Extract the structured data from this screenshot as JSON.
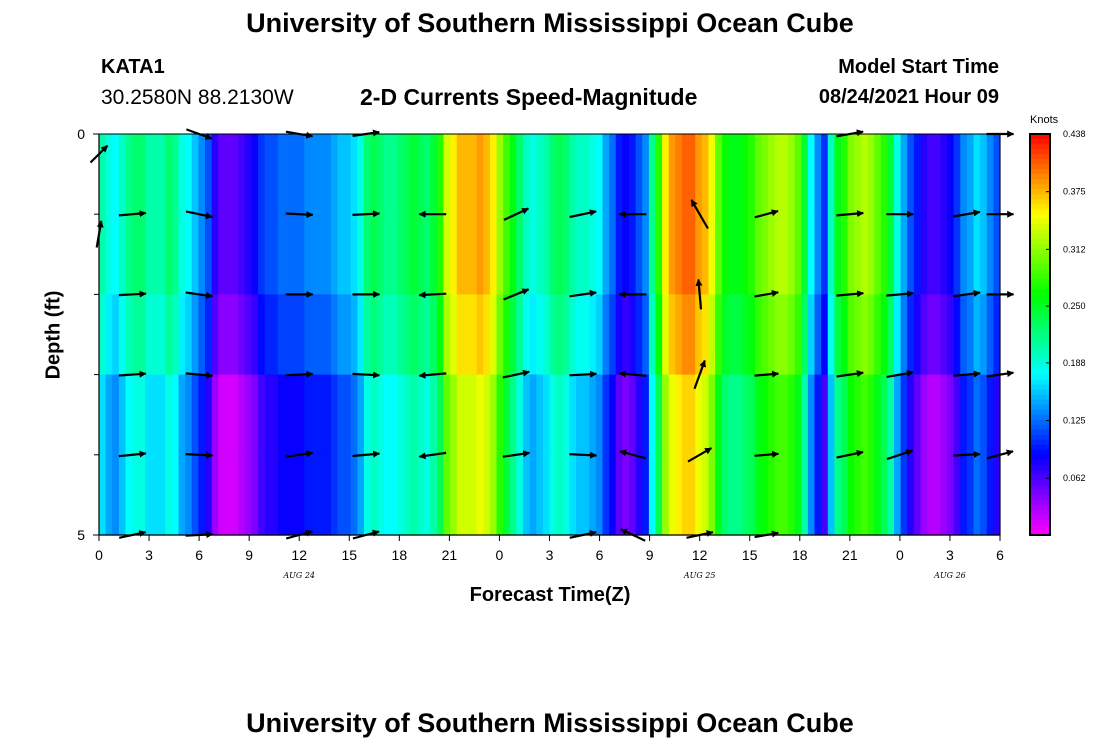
{
  "page": {
    "title_top": "University of Southern Mississippi Ocean Cube",
    "title_bottom": "University of Southern Mississippi Ocean Cube",
    "station": "KATA1",
    "coordinates": "30.2580N  88.2130W",
    "chart_title": "2-D Currents Speed-Magnitude",
    "model_start_label": "Model Start Time",
    "model_start_value": "08/24/2021 Hour 09"
  },
  "chart_data": {
    "type": "heatmap",
    "title": "2-D Currents Speed-Magnitude",
    "xlabel": "Forecast Time(Z)",
    "ylabel": "Depth (ft)",
    "colorbar_label": "Knots",
    "colorbar_ticks": [
      "0.438",
      "0.375",
      "0.312",
      "0.250",
      "0.188",
      "0.125",
      "0.062"
    ],
    "colorbar_range": [
      0,
      0.438
    ],
    "x_hours": [
      0,
      54
    ],
    "x_ticks": [
      {
        "hour": 0,
        "label": "0"
      },
      {
        "hour": 3,
        "label": "3"
      },
      {
        "hour": 6,
        "label": "6"
      },
      {
        "hour": 9,
        "label": "9"
      },
      {
        "hour": 12,
        "label": "12"
      },
      {
        "hour": 15,
        "label": "15"
      },
      {
        "hour": 18,
        "label": "18"
      },
      {
        "hour": 21,
        "label": "21"
      },
      {
        "hour": 24,
        "label": "0"
      },
      {
        "hour": 27,
        "label": "3"
      },
      {
        "hour": 30,
        "label": "6"
      },
      {
        "hour": 33,
        "label": "9"
      },
      {
        "hour": 36,
        "label": "12"
      },
      {
        "hour": 39,
        "label": "15"
      },
      {
        "hour": 42,
        "label": "18"
      },
      {
        "hour": 45,
        "label": "21"
      },
      {
        "hour": 48,
        "label": "0"
      },
      {
        "hour": 51,
        "label": "3"
      },
      {
        "hour": 54,
        "label": "6"
      }
    ],
    "date_labels": [
      {
        "hour": 12,
        "label": "AUG 24"
      },
      {
        "hour": 36,
        "label": "AUG 25"
      },
      {
        "hour": 51,
        "label": "AUG 26"
      }
    ],
    "y_range": [
      0,
      5
    ],
    "y_tick_labels": [
      {
        "depth": 0,
        "label": "0"
      },
      {
        "depth": 5,
        "label": "5"
      }
    ],
    "y_minor_ticks": [
      1,
      2,
      3,
      4
    ],
    "depth_levels": [
      0,
      1,
      2,
      3,
      4,
      5
    ],
    "column_speeds": [
      0.19,
      0.17,
      0.16,
      0.18,
      0.2,
      0.21,
      0.21,
      0.19,
      0.19,
      0.19,
      0.21,
      0.2,
      0.17,
      0.16,
      0.14,
      0.12,
      0.1,
      0.06,
      0.04,
      0.04,
      0.04,
      0.05,
      0.06,
      0.07,
      0.09,
      0.1,
      0.1,
      0.11,
      0.11,
      0.11,
      0.11,
      0.12,
      0.12,
      0.12,
      0.12,
      0.13,
      0.14,
      0.14,
      0.15,
      0.17,
      0.21,
      0.22,
      0.21,
      0.2,
      0.2,
      0.21,
      0.22,
      0.23,
      0.22,
      0.21,
      0.23,
      0.26,
      0.32,
      0.34,
      0.36,
      0.36,
      0.36,
      0.37,
      0.36,
      0.34,
      0.3,
      0.27,
      0.24,
      0.21,
      0.18,
      0.17,
      0.18,
      0.19,
      0.21,
      0.22,
      0.21,
      0.19,
      0.18,
      0.18,
      0.17,
      0.16,
      0.13,
      0.11,
      0.08,
      0.07,
      0.08,
      0.1,
      0.12,
      0.2,
      0.26,
      0.34,
      0.37,
      0.38,
      0.39,
      0.39,
      0.37,
      0.36,
      0.33,
      0.28,
      0.25,
      0.24,
      0.24,
      0.25,
      0.26,
      0.28,
      0.29,
      0.3,
      0.31,
      0.31,
      0.3,
      0.28,
      0.23,
      0.16,
      0.12,
      0.09,
      0.18,
      0.24,
      0.26,
      0.29,
      0.3,
      0.31,
      0.3,
      0.28,
      0.26,
      0.23,
      0.17,
      0.13,
      0.1,
      0.08,
      0.06,
      0.05,
      0.05,
      0.06,
      0.07,
      0.09,
      0.12,
      0.13,
      0.15,
      0.14,
      0.12,
      0.1
    ],
    "depth_offsets": [
      {
        "from_depth": 0,
        "to_depth": 2,
        "offset": 0.015
      },
      {
        "from_depth": 3.5,
        "to_depth": 5,
        "offset": -0.025
      }
    ],
    "notes": "colors encode speed in knots from magenta (0) to red (0.438)",
    "current_vectors": [
      {
        "hour": 0,
        "depth": 0.25,
        "dir_deg": 45,
        "len": 0.8
      },
      {
        "hour": 0,
        "depth": 1.25,
        "dir_deg": 80,
        "len": 0.9
      },
      {
        "hour": 2,
        "depth": 1,
        "dir_deg": 5,
        "len": 0.9
      },
      {
        "hour": 2,
        "depth": 2,
        "dir_deg": 3,
        "len": 0.9
      },
      {
        "hour": 2,
        "depth": 3,
        "dir_deg": 4,
        "len": 0.9
      },
      {
        "hour": 2,
        "depth": 4,
        "dir_deg": 6,
        "len": 0.9
      },
      {
        "hour": 2,
        "depth": 5,
        "dir_deg": 12,
        "len": 0.9
      },
      {
        "hour": 6,
        "depth": 0,
        "dir_deg": -20,
        "len": 0.9
      },
      {
        "hour": 6,
        "depth": 1,
        "dir_deg": -12,
        "len": 0.9
      },
      {
        "hour": 6,
        "depth": 2,
        "dir_deg": -8,
        "len": 0.9
      },
      {
        "hour": 6,
        "depth": 3,
        "dir_deg": -5,
        "len": 0.9
      },
      {
        "hour": 6,
        "depth": 4,
        "dir_deg": -3,
        "len": 0.9
      },
      {
        "hour": 6,
        "depth": 5,
        "dir_deg": 3,
        "len": 0.9
      },
      {
        "hour": 12,
        "depth": 0,
        "dir_deg": -10,
        "len": 0.9
      },
      {
        "hour": 12,
        "depth": 1,
        "dir_deg": -3,
        "len": 0.9
      },
      {
        "hour": 12,
        "depth": 2,
        "dir_deg": 0,
        "len": 0.9
      },
      {
        "hour": 12,
        "depth": 3,
        "dir_deg": 3,
        "len": 0.9
      },
      {
        "hour": 12,
        "depth": 4,
        "dir_deg": 8,
        "len": 0.9
      },
      {
        "hour": 12,
        "depth": 5,
        "dir_deg": 15,
        "len": 0.9
      },
      {
        "hour": 16,
        "depth": 0,
        "dir_deg": 8,
        "len": 0.9
      },
      {
        "hour": 16,
        "depth": 1,
        "dir_deg": 3,
        "len": 0.9
      },
      {
        "hour": 16,
        "depth": 2,
        "dir_deg": 0,
        "len": 0.9
      },
      {
        "hour": 16,
        "depth": 3,
        "dir_deg": -3,
        "len": 0.9
      },
      {
        "hour": 16,
        "depth": 4,
        "dir_deg": 5,
        "len": 0.9
      },
      {
        "hour": 16,
        "depth": 5,
        "dir_deg": 15,
        "len": 0.9
      },
      {
        "hour": 20,
        "depth": 1,
        "dir_deg": 180,
        "len": 0.9
      },
      {
        "hour": 20,
        "depth": 2,
        "dir_deg": 183,
        "len": 0.9
      },
      {
        "hour": 20,
        "depth": 3,
        "dir_deg": 185,
        "len": 0.9
      },
      {
        "hour": 20,
        "depth": 4,
        "dir_deg": 188,
        "len": 0.9
      },
      {
        "hour": 25,
        "depth": 1,
        "dir_deg": 25,
        "len": 0.9
      },
      {
        "hour": 25,
        "depth": 2,
        "dir_deg": 22,
        "len": 0.9
      },
      {
        "hour": 25,
        "depth": 3,
        "dir_deg": 12,
        "len": 0.9
      },
      {
        "hour": 25,
        "depth": 4,
        "dir_deg": 8,
        "len": 0.9
      },
      {
        "hour": 29,
        "depth": 1,
        "dir_deg": 12,
        "len": 0.9
      },
      {
        "hour": 29,
        "depth": 2,
        "dir_deg": 8,
        "len": 0.9
      },
      {
        "hour": 29,
        "depth": 3,
        "dir_deg": 3,
        "len": 0.9
      },
      {
        "hour": 29,
        "depth": 4,
        "dir_deg": -3,
        "len": 0.9
      },
      {
        "hour": 29,
        "depth": 5,
        "dir_deg": 12,
        "len": 0.9
      },
      {
        "hour": 32,
        "depth": 1,
        "dir_deg": 180,
        "len": 0.9
      },
      {
        "hour": 32,
        "depth": 2,
        "dir_deg": 180,
        "len": 0.9
      },
      {
        "hour": 32,
        "depth": 3,
        "dir_deg": 175,
        "len": 0.9
      },
      {
        "hour": 32,
        "depth": 4,
        "dir_deg": 165,
        "len": 0.9
      },
      {
        "hour": 32,
        "depth": 5,
        "dir_deg": 155,
        "len": 0.9
      },
      {
        "hour": 36,
        "depth": 1,
        "dir_deg": 120,
        "len": 1.1
      },
      {
        "hour": 36,
        "depth": 2,
        "dir_deg": 95,
        "len": 1.0
      },
      {
        "hour": 36,
        "depth": 3,
        "dir_deg": 70,
        "len": 1.0
      },
      {
        "hour": 36,
        "depth": 4,
        "dir_deg": 30,
        "len": 0.9
      },
      {
        "hour": 36,
        "depth": 5,
        "dir_deg": 12,
        "len": 0.9
      },
      {
        "hour": 40,
        "depth": 1,
        "dir_deg": 15,
        "len": 0.8
      },
      {
        "hour": 40,
        "depth": 2,
        "dir_deg": 10,
        "len": 0.8
      },
      {
        "hour": 40,
        "depth": 3,
        "dir_deg": 5,
        "len": 0.8
      },
      {
        "hour": 40,
        "depth": 4,
        "dir_deg": 5,
        "len": 0.8
      },
      {
        "hour": 40,
        "depth": 5,
        "dir_deg": 10,
        "len": 0.8
      },
      {
        "hour": 45,
        "depth": 0,
        "dir_deg": 10,
        "len": 0.9
      },
      {
        "hour": 45,
        "depth": 1,
        "dir_deg": 5,
        "len": 0.9
      },
      {
        "hour": 45,
        "depth": 2,
        "dir_deg": 5,
        "len": 0.9
      },
      {
        "hour": 45,
        "depth": 3,
        "dir_deg": 8,
        "len": 0.9
      },
      {
        "hour": 45,
        "depth": 4,
        "dir_deg": 12,
        "len": 0.9
      },
      {
        "hour": 48,
        "depth": 1,
        "dir_deg": 0,
        "len": 0.9
      },
      {
        "hour": 48,
        "depth": 2,
        "dir_deg": 5,
        "len": 0.9
      },
      {
        "hour": 48,
        "depth": 3,
        "dir_deg": 10,
        "len": 0.9
      },
      {
        "hour": 48,
        "depth": 4,
        "dir_deg": 18,
        "len": 0.9
      },
      {
        "hour": 52,
        "depth": 1,
        "dir_deg": 10,
        "len": 0.9
      },
      {
        "hour": 52,
        "depth": 2,
        "dir_deg": 8,
        "len": 0.9
      },
      {
        "hour": 52,
        "depth": 3,
        "dir_deg": 5,
        "len": 0.9
      },
      {
        "hour": 52,
        "depth": 4,
        "dir_deg": 3,
        "len": 0.9
      },
      {
        "hour": 54,
        "depth": 0,
        "dir_deg": 0,
        "len": 0.9
      },
      {
        "hour": 54,
        "depth": 1,
        "dir_deg": 0,
        "len": 0.9
      },
      {
        "hour": 54,
        "depth": 2,
        "dir_deg": 0,
        "len": 0.9
      },
      {
        "hour": 54,
        "depth": 3,
        "dir_deg": 8,
        "len": 0.9
      },
      {
        "hour": 54,
        "depth": 4,
        "dir_deg": 15,
        "len": 0.9
      }
    ]
  }
}
